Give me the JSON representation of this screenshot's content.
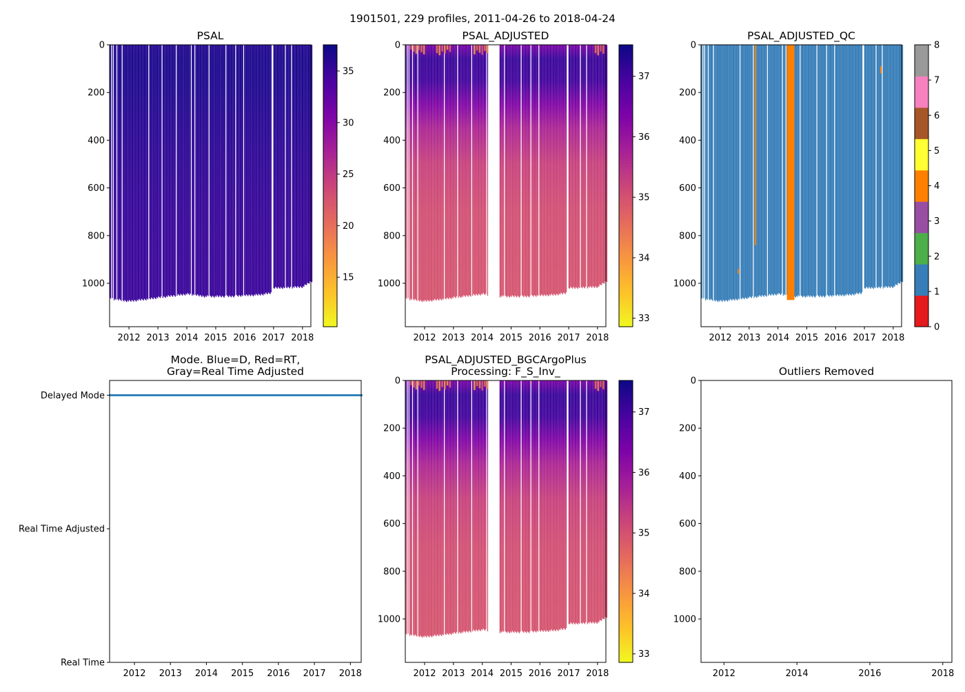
{
  "suptitle": "1901501, 229 profiles, 2011-04-26 to 2018-04-24",
  "profiles": {
    "count": 229,
    "start": 2011.32,
    "end": 2018.31
  },
  "chart_data": [
    {
      "id": "psal",
      "type": "heatmap",
      "title": "PSAL",
      "xlim": [
        2011.33,
        2018.29
      ],
      "ylim": [
        1182,
        0
      ],
      "xticks": [
        "2012",
        "2013",
        "2014",
        "2015",
        "2016",
        "2017",
        "2018"
      ],
      "yticks": [
        "0",
        "200",
        "400",
        "600",
        "800",
        "1000"
      ],
      "colormap": "plasma_r",
      "clim": [
        10.2,
        37.54
      ],
      "colorbar_ticks": [
        "15",
        "20",
        "25",
        "30",
        "35"
      ],
      "profile_values": [
        [
          0,
          36.3
        ],
        [
          60,
          36.8
        ],
        [
          200,
          36.5
        ],
        [
          400,
          35.8
        ],
        [
          700,
          35.2
        ],
        [
          1100,
          34.95
        ]
      ]
    },
    {
      "id": "psal_adj",
      "type": "heatmap",
      "title": "PSAL_ADJUSTED",
      "xlim": [
        2011.33,
        2018.29
      ],
      "ylim": [
        1182,
        0
      ],
      "xticks": [
        "2012",
        "2013",
        "2014",
        "2015",
        "2016",
        "2017",
        "2018"
      ],
      "yticks": [
        "0",
        "200",
        "400",
        "600",
        "800",
        "1000"
      ],
      "colormap": "plasma_r",
      "clim": [
        32.86,
        37.52
      ],
      "colorbar_ticks": [
        "33",
        "34",
        "35",
        "36",
        "37"
      ],
      "profile_values": [
        [
          0,
          36.4
        ],
        [
          60,
          37.1
        ],
        [
          150,
          37.0
        ],
        [
          250,
          36.3
        ],
        [
          350,
          35.7
        ],
        [
          500,
          35.25
        ],
        [
          700,
          35.05
        ],
        [
          1100,
          34.95
        ]
      ],
      "missing_range": [
        2014.2,
        2014.57
      ]
    },
    {
      "id": "psal_adj_qc",
      "type": "heatmap",
      "title": "PSAL_ADJUSTED_QC",
      "xlim": [
        2011.33,
        2018.29
      ],
      "ylim": [
        1182,
        0
      ],
      "xticks": [
        "2012",
        "2013",
        "2014",
        "2015",
        "2016",
        "2017",
        "2018"
      ],
      "yticks": [
        "0",
        "200",
        "400",
        "600",
        "800",
        "1000"
      ],
      "colormap": "qc",
      "clim": [
        0,
        8
      ],
      "colorbar_ticks": [
        "0",
        "1",
        "2",
        "3",
        "4",
        "5",
        "6",
        "7",
        "8"
      ],
      "qc_colors": [
        "#e41a1c",
        "#377eb8",
        "#4daf4a",
        "#984ea3",
        "#ff7f00",
        "#ffff33",
        "#a65628",
        "#f781bf",
        "#999999"
      ],
      "dominant_flag": 1,
      "flag4_regions": [
        [
          2014.31,
          2014.57,
          0,
          1070
        ],
        [
          2013.2,
          2013.24,
          0,
          840
        ],
        [
          2012.6,
          2012.64,
          940,
          960
        ],
        [
          2017.55,
          2017.58,
          90,
          120
        ]
      ]
    },
    {
      "id": "mode",
      "type": "scatter",
      "title": "Mode. Blue=D, Red=RT,",
      "title2": "Gray=Real Time Adjusted",
      "xlim": [
        2011.31,
        2018.3
      ],
      "ylim": [
        0,
        2.11
      ],
      "xticks": [
        "2012",
        "2013",
        "2014",
        "2015",
        "2016",
        "2017",
        "2018"
      ],
      "ycategories": [
        "Real Time",
        "Real Time Adjusted",
        "Delayed Mode"
      ],
      "mode_value": 2,
      "point_color": "#1f77b4"
    },
    {
      "id": "bgc",
      "type": "heatmap",
      "title": "PSAL_ADJUSTED_BGCArgoPlus",
      "title2": "Processing: F_S_Inv_",
      "xlim": [
        2011.33,
        2018.29
      ],
      "ylim": [
        1182,
        0
      ],
      "xticks": [
        "2012",
        "2013",
        "2014",
        "2015",
        "2016",
        "2017",
        "2018"
      ],
      "yticks": [
        "0",
        "200",
        "400",
        "600",
        "800",
        "1000"
      ],
      "colormap": "plasma_r",
      "clim": [
        32.86,
        37.52
      ],
      "colorbar_ticks": [
        "33",
        "34",
        "35",
        "36",
        "37"
      ],
      "profile_values": [
        [
          0,
          36.4
        ],
        [
          60,
          37.1
        ],
        [
          150,
          37.0
        ],
        [
          250,
          36.3
        ],
        [
          350,
          35.7
        ],
        [
          500,
          35.25
        ],
        [
          700,
          35.05
        ],
        [
          1100,
          34.95
        ]
      ],
      "missing_range": [
        2014.2,
        2014.57
      ]
    },
    {
      "id": "outliers",
      "type": "scatter",
      "title": "Outliers Removed",
      "xlim": [
        2011.37,
        2018.25
      ],
      "ylim": [
        1182,
        0
      ],
      "xticks": [
        "2012",
        "2014",
        "2016",
        "2018"
      ],
      "yticks": [
        "0",
        "200",
        "400",
        "600",
        "800",
        "1000"
      ]
    }
  ],
  "gap_dates": [
    2011.38,
    2011.45,
    2011.57,
    2011.74,
    2011.95,
    2012.67,
    2013.14,
    2013.36,
    2013.62,
    2014.14,
    2014.26,
    2014.76,
    2015.14,
    2015.33,
    2015.67,
    2015.95,
    2016.93,
    2016.97,
    2017.4,
    2017.6,
    2018.05
  ],
  "bottom_depth": [
    [
      2011.32,
      1065
    ],
    [
      2012.0,
      1075
    ],
    [
      2012.5,
      1068
    ],
    [
      2013.0,
      1060
    ],
    [
      2014.0,
      1045
    ],
    [
      2014.6,
      1055
    ],
    [
      2015.5,
      1055
    ],
    [
      2016.5,
      1048
    ],
    [
      2016.95,
      1040
    ],
    [
      2017.0,
      1020
    ],
    [
      2018.0,
      1015
    ],
    [
      2018.31,
      990
    ]
  ]
}
